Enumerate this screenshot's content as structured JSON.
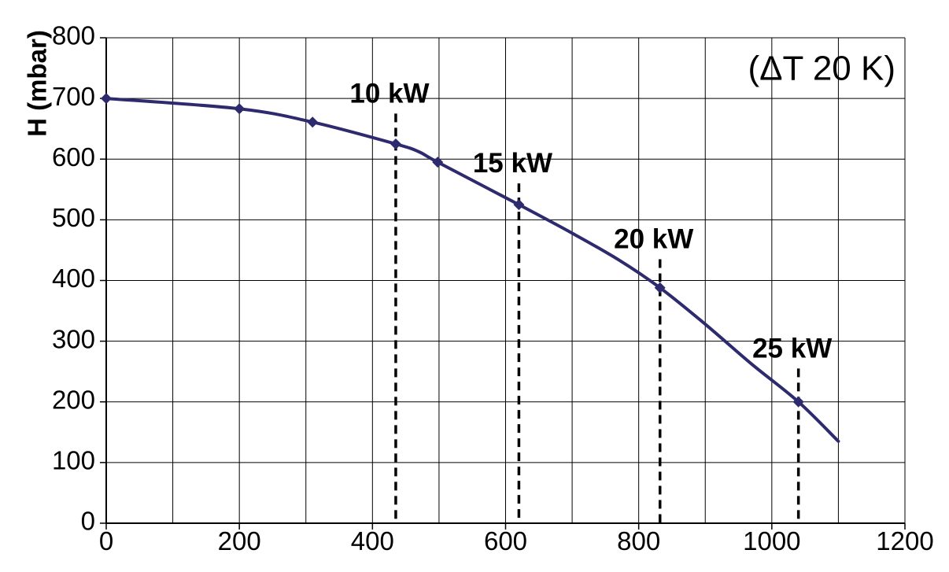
{
  "chart_data": {
    "type": "line",
    "title": "",
    "xlabel": "",
    "ylabel": "H (mbar)",
    "annotation": "(ΔT 20 K)",
    "xlim": [
      0,
      1200
    ],
    "ylim": [
      0,
      800
    ],
    "x_ticks": [
      0,
      200,
      400,
      600,
      800,
      1000,
      1200
    ],
    "x_tick_labels": [
      "0",
      "200",
      "400",
      "600",
      "800",
      "1000",
      "1200"
    ],
    "y_ticks": [
      0,
      100,
      200,
      300,
      400,
      500,
      600,
      700,
      800
    ],
    "y_tick_labels": [
      "0",
      "100",
      "200",
      "300",
      "400",
      "500",
      "600",
      "700",
      "800"
    ],
    "x_grid_step": 100,
    "y_grid_step": 100,
    "grid": true,
    "series": [
      {
        "curve": [
          {
            "x": 0,
            "y": 700
          },
          {
            "x": 200,
            "y": 683
          },
          {
            "x": 310,
            "y": 661
          },
          {
            "x": 435,
            "y": 625
          },
          {
            "x": 470,
            "y": 612
          },
          {
            "x": 498,
            "y": 595
          },
          {
            "x": 620,
            "y": 525
          },
          {
            "x": 700,
            "y": 478
          },
          {
            "x": 770,
            "y": 434
          },
          {
            "x": 832,
            "y": 388
          },
          {
            "x": 900,
            "y": 328
          },
          {
            "x": 970,
            "y": 262
          },
          {
            "x": 1040,
            "y": 200
          },
          {
            "x": 1100,
            "y": 135
          }
        ],
        "markers": [
          {
            "x": 0,
            "y": 700
          },
          {
            "x": 200,
            "y": 683
          },
          {
            "x": 310,
            "y": 661
          },
          {
            "x": 435,
            "y": 625
          },
          {
            "x": 498,
            "y": 595
          },
          {
            "x": 620,
            "y": 525
          },
          {
            "x": 832,
            "y": 388
          },
          {
            "x": 1040,
            "y": 200
          }
        ]
      }
    ],
    "power_markers": [
      {
        "label": "10 kW",
        "x": 435,
        "y_top": 675
      },
      {
        "label": "15 kW",
        "x": 620,
        "y_top": 560
      },
      {
        "label": "20 kW",
        "x": 832,
        "y_top": 435
      },
      {
        "label": "25 kW",
        "x": 1040,
        "y_top": 255
      }
    ],
    "colors": {
      "line": "#2e2a6e",
      "grid": "#000000",
      "dash": "#000000"
    }
  }
}
